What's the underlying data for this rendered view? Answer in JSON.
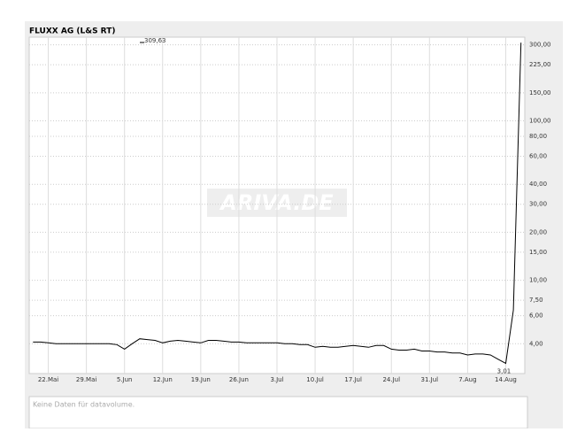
{
  "chart_data": {
    "type": "line",
    "title": "FLUXX AG (L&S RT)",
    "watermark": "ARIVA.DE",
    "log_scale": true,
    "grid": true,
    "color": "#000000",
    "xlim": [
      -2.5,
      62.5
    ],
    "xticks": [
      {
        "value": 0,
        "label": "22.Mai"
      },
      {
        "value": 5,
        "label": "29.Mai"
      },
      {
        "value": 10,
        "label": "5.Jun"
      },
      {
        "value": 15,
        "label": "12.Jun"
      },
      {
        "value": 20,
        "label": "19.Jun"
      },
      {
        "value": 25,
        "label": "26.Jun"
      },
      {
        "value": 30,
        "label": "3.Jul"
      },
      {
        "value": 35,
        "label": "10.Jul"
      },
      {
        "value": 40,
        "label": "17.Jul"
      },
      {
        "value": 45,
        "label": "24.Jul"
      },
      {
        "value": 50,
        "label": "31.Jul"
      },
      {
        "value": 55,
        "label": "7.Aug"
      },
      {
        "value": 60,
        "label": "14.Aug"
      }
    ],
    "ylim": [
      2.6,
      335
    ],
    "yticks": [
      {
        "value": 300,
        "label": "300,00"
      },
      {
        "value": 225,
        "label": "225,00"
      },
      {
        "value": 150,
        "label": "150,00"
      },
      {
        "value": 100,
        "label": "100,00"
      },
      {
        "value": 80,
        "label": "80,00"
      },
      {
        "value": 60,
        "label": "60,00"
      },
      {
        "value": 40,
        "label": "40,00"
      },
      {
        "value": 30,
        "label": "30,00"
      },
      {
        "value": 20,
        "label": "20,00"
      },
      {
        "value": 15,
        "label": "15,00"
      },
      {
        "value": 10,
        "label": "10,00"
      },
      {
        "value": 7.5,
        "label": "7,50"
      },
      {
        "value": 6,
        "label": "6,00"
      },
      {
        "value": 4,
        "label": "4,00"
      }
    ],
    "x": [
      -2,
      -1,
      0,
      1,
      2,
      3,
      4,
      5,
      6,
      7,
      8,
      9,
      10,
      11,
      12,
      13,
      14,
      15,
      16,
      17,
      18,
      19,
      20,
      21,
      22,
      23,
      24,
      25,
      26,
      27,
      28,
      29,
      30,
      31,
      32,
      33,
      34,
      35,
      36,
      37,
      38,
      39,
      40,
      41,
      42,
      43,
      44,
      45,
      46,
      47,
      48,
      49,
      50,
      51,
      52,
      53,
      54,
      55,
      56,
      57,
      58,
      59,
      60,
      61,
      62
    ],
    "values": [
      4.1,
      4.1,
      4.05,
      4.0,
      4.0,
      4.0,
      4.0,
      4.0,
      4.0,
      4.0,
      4.0,
      3.95,
      3.7,
      4.0,
      4.3,
      4.25,
      4.2,
      4.05,
      4.15,
      4.2,
      4.15,
      4.1,
      4.05,
      4.2,
      4.2,
      4.15,
      4.1,
      4.1,
      4.05,
      4.05,
      4.05,
      4.05,
      4.05,
      4.0,
      4.0,
      3.95,
      3.95,
      3.8,
      3.85,
      3.8,
      3.8,
      3.85,
      3.9,
      3.85,
      3.8,
      3.9,
      3.9,
      3.7,
      3.65,
      3.65,
      3.7,
      3.6,
      3.6,
      3.55,
      3.55,
      3.5,
      3.5,
      3.4,
      3.45,
      3.45,
      3.4,
      3.2,
      3.01,
      6.5,
      309.63
    ],
    "annotations": [
      {
        "text": "309,63",
        "index": 64
      },
      {
        "text": "3,01",
        "index": 62
      }
    ],
    "volume_note": "Keine Daten für datavolume."
  }
}
